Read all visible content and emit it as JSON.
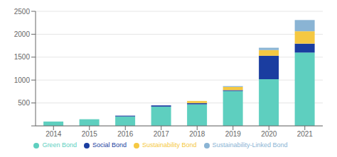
{
  "chart_data": {
    "type": "bar",
    "stacked": true,
    "categories": [
      "2014",
      "2015",
      "2016",
      "2017",
      "2018",
      "2019",
      "2020",
      "2021"
    ],
    "series": [
      {
        "name": "Green Bond",
        "color": "#5ecfbf",
        "values": [
          95,
          145,
          205,
          420,
          470,
          760,
          1020,
          1600
        ]
      },
      {
        "name": "Social Bond",
        "color": "#1a3da0",
        "values": [
          0,
          0,
          18,
          28,
          28,
          20,
          510,
          195
        ]
      },
      {
        "name": "Sustainability Bond",
        "color": "#f5c842",
        "values": [
          0,
          0,
          0,
          0,
          45,
          70,
          125,
          270
        ]
      },
      {
        "name": "Sustainability-Linked Bond",
        "color": "#8ab4d4",
        "values": [
          0,
          0,
          0,
          0,
          0,
          18,
          50,
          245
        ]
      }
    ],
    "ylim": [
      0,
      2500
    ],
    "yticks": [
      {
        "value": 0,
        "label": ""
      },
      500,
      1000,
      1500,
      2000,
      2500
    ],
    "grid": true,
    "legend": "bottom"
  }
}
